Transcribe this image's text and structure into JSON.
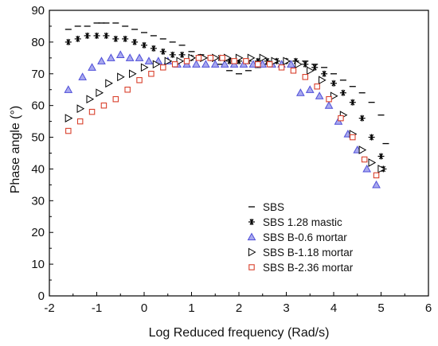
{
  "chart_data": {
    "type": "scatter",
    "xlabel": "Log Reduced frequency (Rad/s)",
    "ylabel": "Phase angle (°)",
    "xlim": [
      -2,
      6
    ],
    "ylim": [
      0,
      90
    ],
    "xticks": [
      -2,
      -1,
      0,
      1,
      2,
      3,
      4,
      5,
      6
    ],
    "yticks": [
      0,
      10,
      20,
      30,
      40,
      50,
      60,
      70,
      80,
      90
    ],
    "xtick_labels": [
      "-2",
      "-1",
      "0",
      "1",
      "2",
      "3",
      "4",
      "5",
      "6"
    ],
    "ytick_labels": [
      "0",
      "10",
      "20",
      "30",
      "40",
      "50",
      "60",
      "70",
      "80",
      "90"
    ],
    "grid": false,
    "legend_position": "bottom-right",
    "series": [
      {
        "name": "SBS",
        "marker": "dash",
        "color": "#000000",
        "x": [
          -1.6,
          -1.4,
          -1.2,
          -1.0,
          -0.9,
          -0.8,
          -0.6,
          -0.4,
          -0.2,
          0.0,
          0.2,
          0.4,
          0.6,
          0.8,
          1.0,
          1.2,
          1.4,
          1.6,
          1.8,
          2.0,
          2.2,
          2.4,
          2.6,
          2.8,
          3.0,
          3.2,
          3.4,
          3.6,
          3.8,
          4.0,
          4.2,
          4.4,
          4.6,
          4.8,
          5.0,
          5.1
        ],
        "y": [
          84,
          85,
          85,
          86,
          86,
          86,
          86,
          85,
          84,
          83,
          82,
          81,
          80,
          79,
          77,
          76,
          75,
          73,
          71,
          70,
          71,
          72,
          73,
          74,
          74,
          74,
          74,
          73,
          72,
          70,
          68,
          66,
          64,
          61,
          57,
          48
        ]
      },
      {
        "name": "SBS 1.28 mastic",
        "marker": "asterisk",
        "color": "#000000",
        "x": [
          -1.6,
          -1.4,
          -1.2,
          -1.0,
          -0.8,
          -0.6,
          -0.4,
          -0.2,
          0.0,
          0.2,
          0.4,
          0.6,
          0.8,
          1.0,
          1.2,
          1.4,
          1.6,
          1.8,
          2.0,
          2.2,
          2.4,
          2.6,
          2.8,
          3.0,
          3.2,
          3.4,
          3.6,
          3.8,
          4.0,
          4.2,
          4.4,
          4.6,
          4.8,
          5.0,
          5.05
        ],
        "y": [
          80,
          81,
          82,
          82,
          82,
          81,
          81,
          80,
          79,
          78,
          77,
          76,
          76,
          75,
          75,
          75,
          75,
          74,
          74,
          74,
          74,
          74,
          74,
          74,
          74,
          73,
          72,
          70,
          67,
          64,
          61,
          56,
          50,
          44,
          40
        ]
      },
      {
        "name": "SBS B-0.6 mortar",
        "marker": "triangle-up",
        "color": "#4f4fd9",
        "fill": "#a9a9ee",
        "x": [
          -1.6,
          -1.3,
          -1.1,
          -0.9,
          -0.7,
          -0.5,
          -0.3,
          -0.1,
          0.1,
          0.3,
          0.5,
          0.7,
          0.9,
          1.1,
          1.3,
          1.5,
          1.7,
          1.9,
          2.1,
          2.3,
          2.5,
          2.7,
          2.9,
          3.1,
          3.3,
          3.5,
          3.7,
          3.9,
          4.1,
          4.3,
          4.5,
          4.7,
          4.9
        ],
        "y": [
          65,
          69,
          72,
          74,
          75,
          76,
          75,
          75,
          74,
          74,
          74,
          73,
          73,
          73,
          73,
          73,
          73,
          73,
          73,
          73,
          73,
          73,
          73,
          73,
          64,
          65,
          63,
          60,
          55,
          51,
          46,
          40,
          35
        ]
      },
      {
        "name": "SBS B-1.18 mortar",
        "marker": "triangle-right",
        "color": "#000000",
        "x": [
          -1.6,
          -1.35,
          -1.15,
          -0.95,
          -0.75,
          -0.5,
          -0.25,
          0.0,
          0.25,
          0.5,
          0.75,
          1.0,
          1.25,
          1.5,
          1.75,
          2.0,
          2.25,
          2.5,
          2.75,
          3.0,
          3.25,
          3.5,
          3.75,
          4.0,
          4.2,
          4.4,
          4.6,
          4.8,
          5.0
        ],
        "y": [
          56,
          59,
          62,
          64,
          67,
          69,
          70,
          72,
          73,
          74,
          74,
          75,
          75,
          75,
          75,
          75,
          75,
          75,
          74,
          74,
          73,
          71,
          68,
          63,
          57,
          51,
          46,
          42,
          40
        ]
      },
      {
        "name": "SBS B-2.36 mortar",
        "marker": "square",
        "color": "#d9402c",
        "x": [
          -1.6,
          -1.35,
          -1.1,
          -0.85,
          -0.6,
          -0.35,
          -0.1,
          0.15,
          0.4,
          0.65,
          0.9,
          1.15,
          1.4,
          1.65,
          1.9,
          2.15,
          2.4,
          2.65,
          2.9,
          3.15,
          3.4,
          3.65,
          3.9,
          4.15,
          4.4,
          4.65,
          4.9
        ],
        "y": [
          52,
          55,
          58,
          60,
          62,
          65,
          68,
          70,
          72,
          73,
          74,
          75,
          75,
          75,
          74,
          74,
          73,
          73,
          72,
          71,
          69,
          66,
          62,
          56,
          50,
          43,
          38
        ]
      }
    ]
  }
}
